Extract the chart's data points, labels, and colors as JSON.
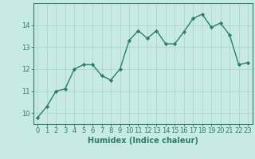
{
  "x": [
    0,
    1,
    2,
    3,
    4,
    5,
    6,
    7,
    8,
    9,
    10,
    11,
    12,
    13,
    14,
    15,
    16,
    17,
    18,
    19,
    20,
    21,
    22,
    23
  ],
  "y": [
    9.8,
    10.3,
    11.0,
    11.1,
    12.0,
    12.2,
    12.2,
    11.7,
    11.5,
    12.0,
    13.3,
    13.75,
    13.4,
    13.75,
    13.15,
    13.15,
    13.7,
    14.3,
    14.5,
    13.9,
    14.1,
    13.55,
    12.2,
    12.3
  ],
  "line_color": "#2e7d6e",
  "marker": "D",
  "markersize": 2.2,
  "linewidth": 1.0,
  "bg_color": "#c8eae5",
  "grid_color": "#afd4ce",
  "xlabel": "Humidex (Indice chaleur)",
  "xlabel_fontsize": 7,
  "tick_fontsize": 6,
  "xlim": [
    -0.5,
    23.5
  ],
  "ylim": [
    9.5,
    15.0
  ],
  "yticks": [
    10,
    11,
    12,
    13,
    14
  ],
  "xticks": [
    0,
    1,
    2,
    3,
    4,
    5,
    6,
    7,
    8,
    9,
    10,
    11,
    12,
    13,
    14,
    15,
    16,
    17,
    18,
    19,
    20,
    21,
    22,
    23
  ],
  "spine_color": "#2e7d6e",
  "tick_color": "#2e7d6e",
  "label_color": "#2e7d6e"
}
